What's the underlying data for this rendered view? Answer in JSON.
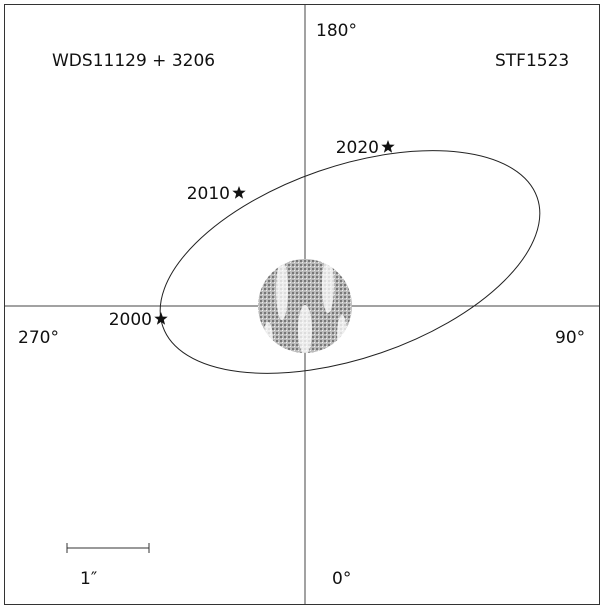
{
  "header": {
    "designation": "WDS11129 + 3206",
    "name": "STF1523"
  },
  "angles": {
    "top": "180°",
    "left": "270°",
    "right": "90°",
    "bottom": "0°"
  },
  "epochs": [
    "2000",
    "2010",
    "2020"
  ],
  "scale": {
    "label": "1″"
  }
}
